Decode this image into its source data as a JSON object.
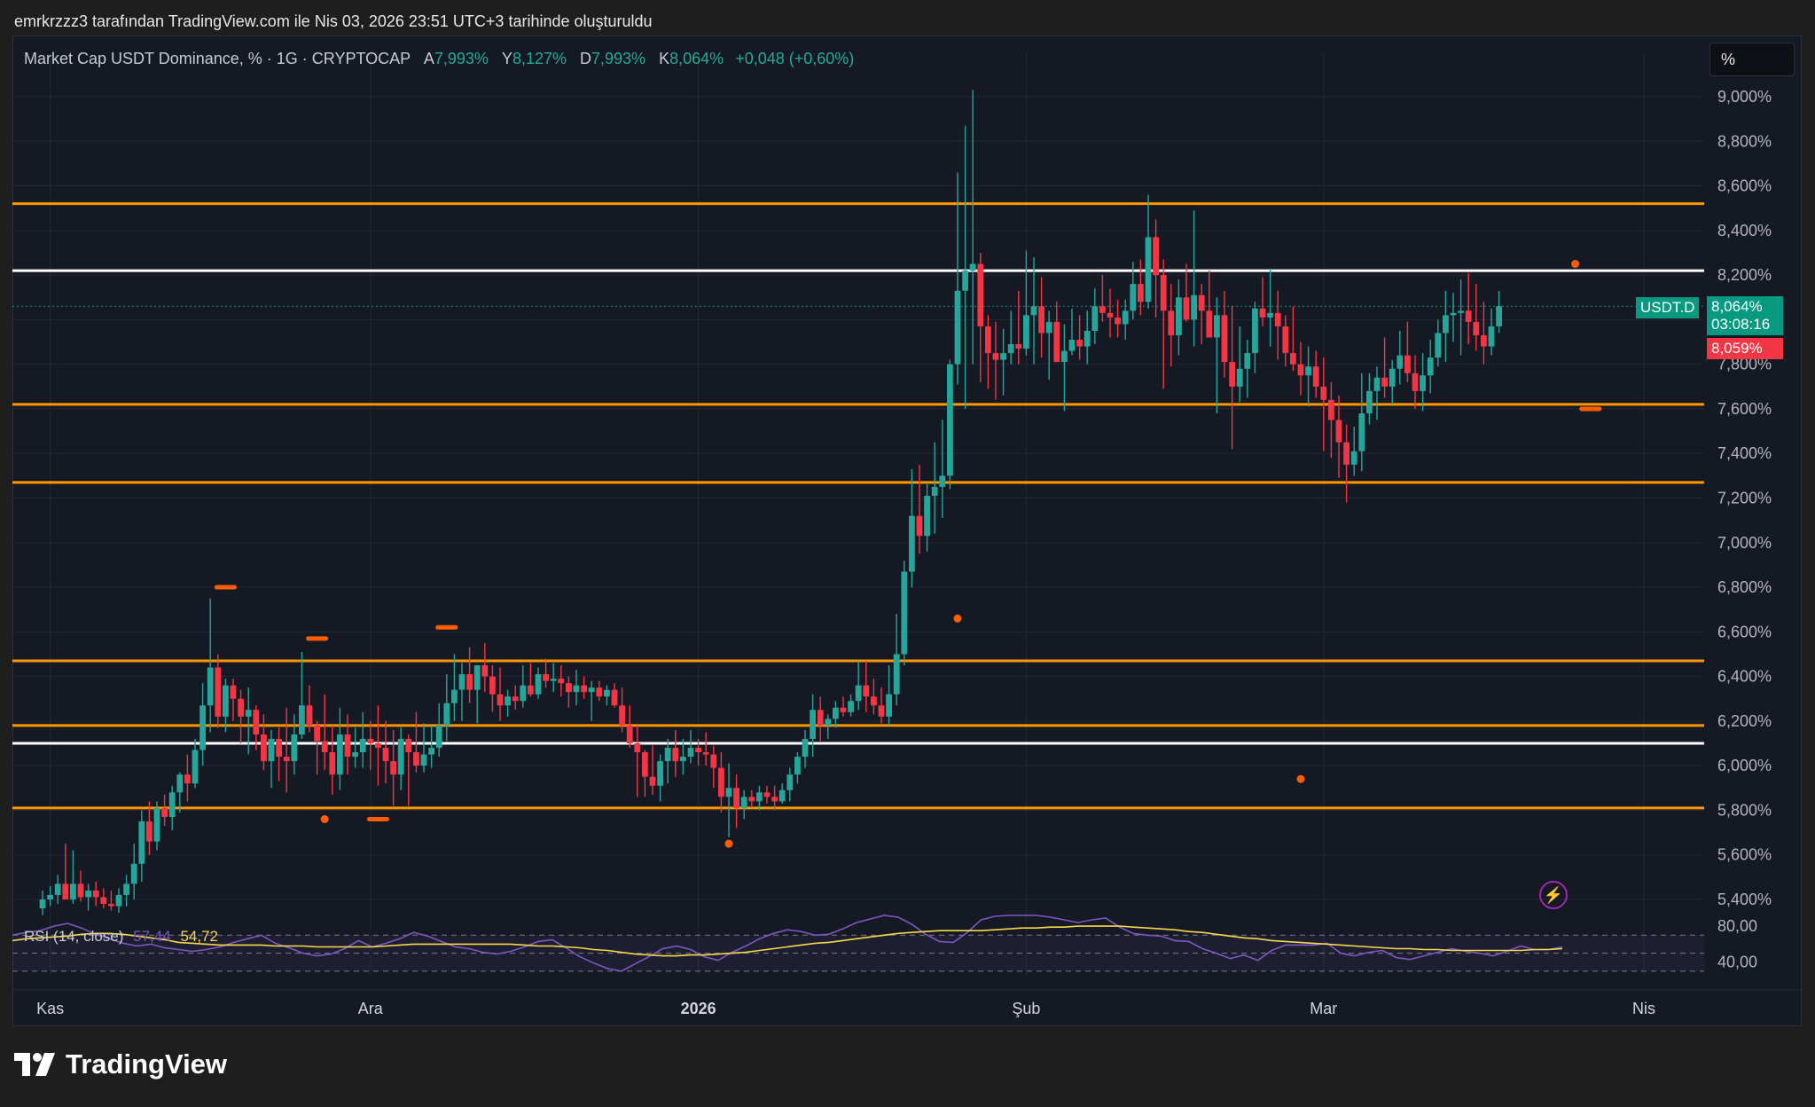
{
  "snapshot_text": "emrkrzzz3 tarafından TradingView.com ile Nis 03, 2026 23:51 UTC+3 tarihinde oluşturuldu",
  "legend": {
    "symbol": "Market Cap USDT Dominance, % · 1G · CRYPTOCAP",
    "open_label": "A",
    "open": "7,993%",
    "high_label": "Y",
    "high": "8,127%",
    "low_label": "D",
    "low": "7,993%",
    "close_label": "K",
    "close": "8,064%",
    "change": "+0,048 (+0,60%)"
  },
  "scale_button": "%",
  "price_tags": {
    "symbol": "USDT.D",
    "last": "8,064%",
    "countdown": "03:08:16",
    "prev": "8,059%"
  },
  "rsi_legend": {
    "name": "RSI (14, close)",
    "rsi": "57,44",
    "ma": "54,72"
  },
  "brand": "TradingView",
  "colors": {
    "up": "#26a69a",
    "down": "#f23645",
    "level": "#ff9800",
    "white_level": "#ffffff",
    "rsi": "#7e57c2",
    "rsi_ma": "#f7d94c",
    "marker": "#ff5d00",
    "bg": "#151924"
  },
  "chart_data": {
    "type": "candlestick",
    "y_unit": "%",
    "y_ticks": [
      "9,000%",
      "8,800%",
      "8,600%",
      "8,400%",
      "8,200%",
      "7,800%",
      "7,600%",
      "7,400%",
      "7,200%",
      "7,000%",
      "6,800%",
      "6,600%",
      "6,400%",
      "6,200%",
      "6,000%",
      "5,800%",
      "5,600%",
      "5,400%"
    ],
    "y_range": [
      5.4,
      9.0
    ],
    "x_labels": [
      "Kas",
      "Ara",
      "2026",
      "Şub",
      "Mar",
      "Nis"
    ],
    "x_label_index": [
      1,
      43,
      86,
      129,
      168,
      210
    ],
    "horizontal_levels": [
      {
        "price": 8.52,
        "color": "orange"
      },
      {
        "price": 8.22,
        "color": "white"
      },
      {
        "price": 7.62,
        "color": "orange"
      },
      {
        "price": 7.27,
        "color": "orange"
      },
      {
        "price": 6.47,
        "color": "orange"
      },
      {
        "price": 6.18,
        "color": "orange"
      },
      {
        "price": 6.1,
        "color": "white"
      },
      {
        "price": 5.81,
        "color": "orange"
      }
    ],
    "candles": [
      [
        5.36,
        5.44,
        5.33,
        5.4
      ],
      [
        5.4,
        5.46,
        5.37,
        5.42
      ],
      [
        5.42,
        5.51,
        5.38,
        5.47
      ],
      [
        5.47,
        5.65,
        5.4,
        5.4
      ],
      [
        5.4,
        5.62,
        5.38,
        5.47
      ],
      [
        5.47,
        5.53,
        5.39,
        5.41
      ],
      [
        5.41,
        5.47,
        5.35,
        5.44
      ],
      [
        5.44,
        5.48,
        5.37,
        5.41
      ],
      [
        5.41,
        5.45,
        5.36,
        5.38
      ],
      [
        5.38,
        5.44,
        5.35,
        5.37
      ],
      [
        5.37,
        5.45,
        5.34,
        5.42
      ],
      [
        5.42,
        5.51,
        5.37,
        5.47
      ],
      [
        5.47,
        5.65,
        5.4,
        5.56
      ],
      [
        5.56,
        5.8,
        5.48,
        5.75
      ],
      [
        5.75,
        5.84,
        5.6,
        5.66
      ],
      [
        5.66,
        5.84,
        5.62,
        5.81
      ],
      [
        5.81,
        5.87,
        5.73,
        5.77
      ],
      [
        5.77,
        5.91,
        5.71,
        5.88
      ],
      [
        5.88,
        5.97,
        5.79,
        5.96
      ],
      [
        5.96,
        6.05,
        5.84,
        5.92
      ],
      [
        5.92,
        6.12,
        5.9,
        6.07
      ],
      [
        6.07,
        6.37,
        6.0,
        6.27
      ],
      [
        6.27,
        6.75,
        6.15,
        6.44
      ],
      [
        6.44,
        6.5,
        6.17,
        6.22
      ],
      [
        6.22,
        6.39,
        6.15,
        6.36
      ],
      [
        6.36,
        6.39,
        6.2,
        6.3
      ],
      [
        6.3,
        6.34,
        6.1,
        6.22
      ],
      [
        6.22,
        6.35,
        6.05,
        6.25
      ],
      [
        6.25,
        6.27,
        6.07,
        6.14
      ],
      [
        6.14,
        6.23,
        5.98,
        6.02
      ],
      [
        6.02,
        6.16,
        5.9,
        6.12
      ],
      [
        6.12,
        6.17,
        5.93,
        6.04
      ],
      [
        6.04,
        6.26,
        5.88,
        6.02
      ],
      [
        6.02,
        6.23,
        5.96,
        6.14
      ],
      [
        6.14,
        6.51,
        6.12,
        6.27
      ],
      [
        6.27,
        6.36,
        6.15,
        6.18
      ],
      [
        6.18,
        6.2,
        5.96,
        6.11
      ],
      [
        6.11,
        6.32,
        5.98,
        6.06
      ],
      [
        6.06,
        6.18,
        5.87,
        5.96
      ],
      [
        5.96,
        6.26,
        5.89,
        6.14
      ],
      [
        6.14,
        6.23,
        5.96,
        6.04
      ],
      [
        6.04,
        6.17,
        5.99,
        6.06
      ],
      [
        6.06,
        6.24,
        5.99,
        6.12
      ],
      [
        6.12,
        6.2,
        5.98,
        6.1
      ],
      [
        6.1,
        6.27,
        5.91,
        6.08
      ],
      [
        6.08,
        6.2,
        5.92,
        6.02
      ],
      [
        6.02,
        6.16,
        5.82,
        5.96
      ],
      [
        5.96,
        6.17,
        5.89,
        6.12
      ],
      [
        6.12,
        6.14,
        5.82,
        6.06
      ],
      [
        6.06,
        6.24,
        5.97,
        6.0
      ],
      [
        6.0,
        6.19,
        5.97,
        6.05
      ],
      [
        6.05,
        6.18,
        5.99,
        6.08
      ],
      [
        6.08,
        6.28,
        6.04,
        6.18
      ],
      [
        6.18,
        6.41,
        6.11,
        6.28
      ],
      [
        6.28,
        6.5,
        6.2,
        6.34
      ],
      [
        6.34,
        6.46,
        6.2,
        6.41
      ],
      [
        6.41,
        6.53,
        6.28,
        6.34
      ],
      [
        6.34,
        6.45,
        6.19,
        6.45
      ],
      [
        6.45,
        6.55,
        6.33,
        6.4
      ],
      [
        6.4,
        6.45,
        6.24,
        6.32
      ],
      [
        6.32,
        6.44,
        6.2,
        6.27
      ],
      [
        6.27,
        6.34,
        6.22,
        6.31
      ],
      [
        6.31,
        6.36,
        6.25,
        6.29
      ],
      [
        6.29,
        6.45,
        6.26,
        6.36
      ],
      [
        6.36,
        6.46,
        6.31,
        6.32
      ],
      [
        6.32,
        6.44,
        6.3,
        6.41
      ],
      [
        6.41,
        6.48,
        6.35,
        6.38
      ],
      [
        6.38,
        6.46,
        6.33,
        6.39
      ],
      [
        6.39,
        6.45,
        6.31,
        6.37
      ],
      [
        6.37,
        6.4,
        6.26,
        6.33
      ],
      [
        6.33,
        6.43,
        6.27,
        6.36
      ],
      [
        6.36,
        6.4,
        6.3,
        6.33
      ],
      [
        6.33,
        6.38,
        6.2,
        6.35
      ],
      [
        6.35,
        6.38,
        6.29,
        6.31
      ],
      [
        6.31,
        6.36,
        6.27,
        6.34
      ],
      [
        6.34,
        6.37,
        6.26,
        6.27
      ],
      [
        6.27,
        6.35,
        6.15,
        6.18
      ],
      [
        6.18,
        6.27,
        6.08,
        6.1
      ],
      [
        6.1,
        6.18,
        5.86,
        6.06
      ],
      [
        6.06,
        6.07,
        5.86,
        5.95
      ],
      [
        5.95,
        6.09,
        5.87,
        5.91
      ],
      [
        5.91,
        6.05,
        5.84,
        6.02
      ],
      [
        6.02,
        6.12,
        5.92,
        6.08
      ],
      [
        6.08,
        6.16,
        5.95,
        6.02
      ],
      [
        6.02,
        6.12,
        5.96,
        6.04
      ],
      [
        6.04,
        6.16,
        6.01,
        6.08
      ],
      [
        6.08,
        6.12,
        6.0,
        6.06
      ],
      [
        6.06,
        6.15,
        6.0,
        6.05
      ],
      [
        6.05,
        6.09,
        5.9,
        5.99
      ],
      [
        5.99,
        6.06,
        5.79,
        5.86
      ],
      [
        5.86,
        6.01,
        5.68,
        5.9
      ],
      [
        5.9,
        5.96,
        5.72,
        5.81
      ],
      [
        5.81,
        5.89,
        5.76,
        5.86
      ],
      [
        5.86,
        5.89,
        5.81,
        5.84
      ],
      [
        5.84,
        5.91,
        5.8,
        5.88
      ],
      [
        5.88,
        5.91,
        5.83,
        5.86
      ],
      [
        5.86,
        5.91,
        5.8,
        5.84
      ],
      [
        5.84,
        5.92,
        5.83,
        5.89
      ],
      [
        5.89,
        5.99,
        5.84,
        5.96
      ],
      [
        5.96,
        6.06,
        5.92,
        6.04
      ],
      [
        6.04,
        6.16,
        5.99,
        6.12
      ],
      [
        6.12,
        6.32,
        6.04,
        6.25
      ],
      [
        6.25,
        6.31,
        6.11,
        6.18
      ],
      [
        6.18,
        6.23,
        6.12,
        6.21
      ],
      [
        6.21,
        6.29,
        6.17,
        6.26
      ],
      [
        6.26,
        6.31,
        6.22,
        6.24
      ],
      [
        6.24,
        6.32,
        6.22,
        6.29
      ],
      [
        6.29,
        6.47,
        6.25,
        6.36
      ],
      [
        6.36,
        6.47,
        6.24,
        6.31
      ],
      [
        6.31,
        6.39,
        6.23,
        6.27
      ],
      [
        6.27,
        6.35,
        6.19,
        6.22
      ],
      [
        6.22,
        6.45,
        6.18,
        6.32
      ],
      [
        6.32,
        6.68,
        6.27,
        6.5
      ],
      [
        6.5,
        6.92,
        6.45,
        6.87
      ],
      [
        6.87,
        7.33,
        6.8,
        7.12
      ],
      [
        7.12,
        7.35,
        6.95,
        7.03
      ],
      [
        7.03,
        7.27,
        6.96,
        7.21
      ],
      [
        7.21,
        7.45,
        7.04,
        7.25
      ],
      [
        7.25,
        7.55,
        7.11,
        7.3
      ],
      [
        7.3,
        7.82,
        7.24,
        7.8
      ],
      [
        7.8,
        8.66,
        7.71,
        8.13
      ],
      [
        8.13,
        8.87,
        7.6,
        8.22
      ],
      [
        8.22,
        9.03,
        7.8,
        8.25
      ],
      [
        8.25,
        8.3,
        7.72,
        7.97
      ],
      [
        7.97,
        8.02,
        7.69,
        7.85
      ],
      [
        7.85,
        7.99,
        7.64,
        7.82
      ],
      [
        7.82,
        7.96,
        7.66,
        7.85
      ],
      [
        7.85,
        8.04,
        7.8,
        7.89
      ],
      [
        7.89,
        8.13,
        7.8,
        7.87
      ],
      [
        7.87,
        8.31,
        7.84,
        8.02
      ],
      [
        8.02,
        8.28,
        7.8,
        8.06
      ],
      [
        8.06,
        8.19,
        7.83,
        7.94
      ],
      [
        7.94,
        8.04,
        7.73,
        7.99
      ],
      [
        7.99,
        8.08,
        7.83,
        7.81
      ],
      [
        7.81,
        7.98,
        7.59,
        7.86
      ],
      [
        7.86,
        8.05,
        7.84,
        7.91
      ],
      [
        7.91,
        8.02,
        7.82,
        7.88
      ],
      [
        7.88,
        8.04,
        7.8,
        7.95
      ],
      [
        7.95,
        8.14,
        7.89,
        8.06
      ],
      [
        8.06,
        8.2,
        7.99,
        8.03
      ],
      [
        8.03,
        8.14,
        7.92,
        8.01
      ],
      [
        8.01,
        8.09,
        7.92,
        7.98
      ],
      [
        7.98,
        8.09,
        7.91,
        8.04
      ],
      [
        8.04,
        8.26,
        8.0,
        8.16
      ],
      [
        8.16,
        8.27,
        8.02,
        8.08
      ],
      [
        8.08,
        8.56,
        8.05,
        8.37
      ],
      [
        8.37,
        8.45,
        8.01,
        8.2
      ],
      [
        8.2,
        8.27,
        7.69,
        8.04
      ],
      [
        8.04,
        8.16,
        7.79,
        7.93
      ],
      [
        7.93,
        8.18,
        7.84,
        8.1
      ],
      [
        8.1,
        8.25,
        7.99,
        8.0
      ],
      [
        8.0,
        8.49,
        7.88,
        8.11
      ],
      [
        8.11,
        8.16,
        7.89,
        8.04
      ],
      [
        8.04,
        8.22,
        7.94,
        7.92
      ],
      [
        7.92,
        8.1,
        7.58,
        8.02
      ],
      [
        8.02,
        8.13,
        7.74,
        7.81
      ],
      [
        7.81,
        8.06,
        7.42,
        7.7
      ],
      [
        7.7,
        7.97,
        7.63,
        7.78
      ],
      [
        7.78,
        7.91,
        7.65,
        7.85
      ],
      [
        7.85,
        8.08,
        7.76,
        8.05
      ],
      [
        8.05,
        8.19,
        7.97,
        8.01
      ],
      [
        8.01,
        8.23,
        7.88,
        8.03
      ],
      [
        8.03,
        8.13,
        7.82,
        7.97
      ],
      [
        7.97,
        8.02,
        7.79,
        7.85
      ],
      [
        7.85,
        8.06,
        7.77,
        7.8
      ],
      [
        7.8,
        7.9,
        7.66,
        7.75
      ],
      [
        7.75,
        7.88,
        7.61,
        7.79
      ],
      [
        7.79,
        7.86,
        7.65,
        7.7
      ],
      [
        7.7,
        7.83,
        7.41,
        7.64
      ],
      [
        7.64,
        7.72,
        7.38,
        7.55
      ],
      [
        7.55,
        7.66,
        7.29,
        7.45
      ],
      [
        7.45,
        7.53,
        7.18,
        7.35
      ],
      [
        7.35,
        7.52,
        7.3,
        7.41
      ],
      [
        7.41,
        7.76,
        7.32,
        7.58
      ],
      [
        7.58,
        7.76,
        7.53,
        7.68
      ],
      [
        7.68,
        7.79,
        7.55,
        7.74
      ],
      [
        7.74,
        7.92,
        7.65,
        7.7
      ],
      [
        7.7,
        7.82,
        7.62,
        7.78
      ],
      [
        7.78,
        7.95,
        7.71,
        7.84
      ],
      [
        7.84,
        7.99,
        7.72,
        7.76
      ],
      [
        7.76,
        7.84,
        7.6,
        7.68
      ],
      [
        7.68,
        7.85,
        7.59,
        7.75
      ],
      [
        7.75,
        7.91,
        7.67,
        7.83
      ],
      [
        7.83,
        8.0,
        7.79,
        7.94
      ],
      [
        7.94,
        8.13,
        7.81,
        8.02
      ],
      [
        8.02,
        8.12,
        7.9,
        8.03
      ],
      [
        8.03,
        8.18,
        7.84,
        8.04
      ],
      [
        8.04,
        8.21,
        7.89,
        7.99
      ],
      [
        7.99,
        8.16,
        7.86,
        7.93
      ],
      [
        7.93,
        8.08,
        7.8,
        7.88
      ],
      [
        7.88,
        8.05,
        7.84,
        7.97
      ],
      [
        7.97,
        8.13,
        7.94,
        8.06
      ]
    ],
    "markers": [
      {
        "i": 24,
        "price": 6.8,
        "shape": "dash"
      },
      {
        "i": 36,
        "price": 6.57,
        "shape": "dash"
      },
      {
        "i": 53,
        "price": 6.62,
        "shape": "dash"
      },
      {
        "i": 37,
        "price": 5.76,
        "shape": "dot"
      },
      {
        "i": 44,
        "price": 5.76,
        "shape": "dash"
      },
      {
        "i": 90,
        "price": 5.65,
        "shape": "dot"
      },
      {
        "i": 120,
        "price": 6.66,
        "shape": "dot"
      },
      {
        "i": 165,
        "price": 5.94,
        "shape": "dot"
      },
      {
        "i": 201,
        "price": 8.25,
        "shape": "dot"
      },
      {
        "i": 203,
        "price": 7.6,
        "shape": "dash"
      }
    ],
    "rsi": {
      "range": [
        0,
        100
      ],
      "bands": [
        70,
        30
      ],
      "labels": [
        "80,00",
        "40,00"
      ],
      "rsi_values": [
        70,
        73,
        75,
        80,
        83,
        78,
        71,
        66,
        61,
        58,
        60,
        56,
        54,
        52,
        54,
        57,
        62,
        66,
        70,
        61,
        56,
        50,
        47,
        49,
        55,
        64,
        57,
        61,
        66,
        73,
        69,
        63,
        57,
        55,
        51,
        49,
        52,
        57,
        63,
        65,
        56,
        46,
        39,
        33,
        30,
        38,
        46,
        55,
        58,
        54,
        46,
        42,
        51,
        58,
        66,
        72,
        76,
        74,
        70,
        71,
        77,
        84,
        88,
        93,
        90,
        82,
        71,
        63,
        62,
        73,
        87,
        91,
        92,
        94,
        93,
        90,
        87,
        84,
        87,
        89,
        79,
        72,
        70,
        69,
        64,
        63,
        55,
        50,
        44,
        48,
        42,
        53,
        59,
        59,
        59,
        61,
        50,
        47,
        51,
        53,
        45,
        43,
        47,
        51,
        55,
        52,
        50,
        47,
        52,
        58,
        54,
        54,
        57
      ],
      "ma_values": [
        64,
        66,
        67,
        68,
        69,
        71,
        72,
        72,
        71,
        69,
        67,
        65,
        62,
        61,
        60,
        59,
        59,
        59,
        59,
        58,
        58,
        58,
        57,
        57,
        57,
        57,
        57,
        58,
        59,
        60,
        60,
        60,
        60,
        60,
        60,
        60,
        60,
        59,
        58,
        58,
        57,
        56,
        54,
        53,
        51,
        49,
        48,
        47,
        47,
        48,
        48,
        49,
        50,
        51,
        53,
        55,
        57,
        59,
        61,
        62,
        64,
        66,
        68,
        70,
        72,
        73,
        74,
        75,
        75,
        75,
        75,
        76,
        77,
        78,
        78,
        79,
        79,
        80,
        80,
        80,
        80,
        79,
        78,
        77,
        76,
        74,
        73,
        71,
        69,
        67,
        66,
        64,
        63,
        62,
        61,
        60,
        59,
        58,
        57,
        56,
        55,
        55,
        54,
        54,
        53,
        53,
        53,
        53,
        53,
        53,
        54,
        54,
        55
      ]
    }
  }
}
